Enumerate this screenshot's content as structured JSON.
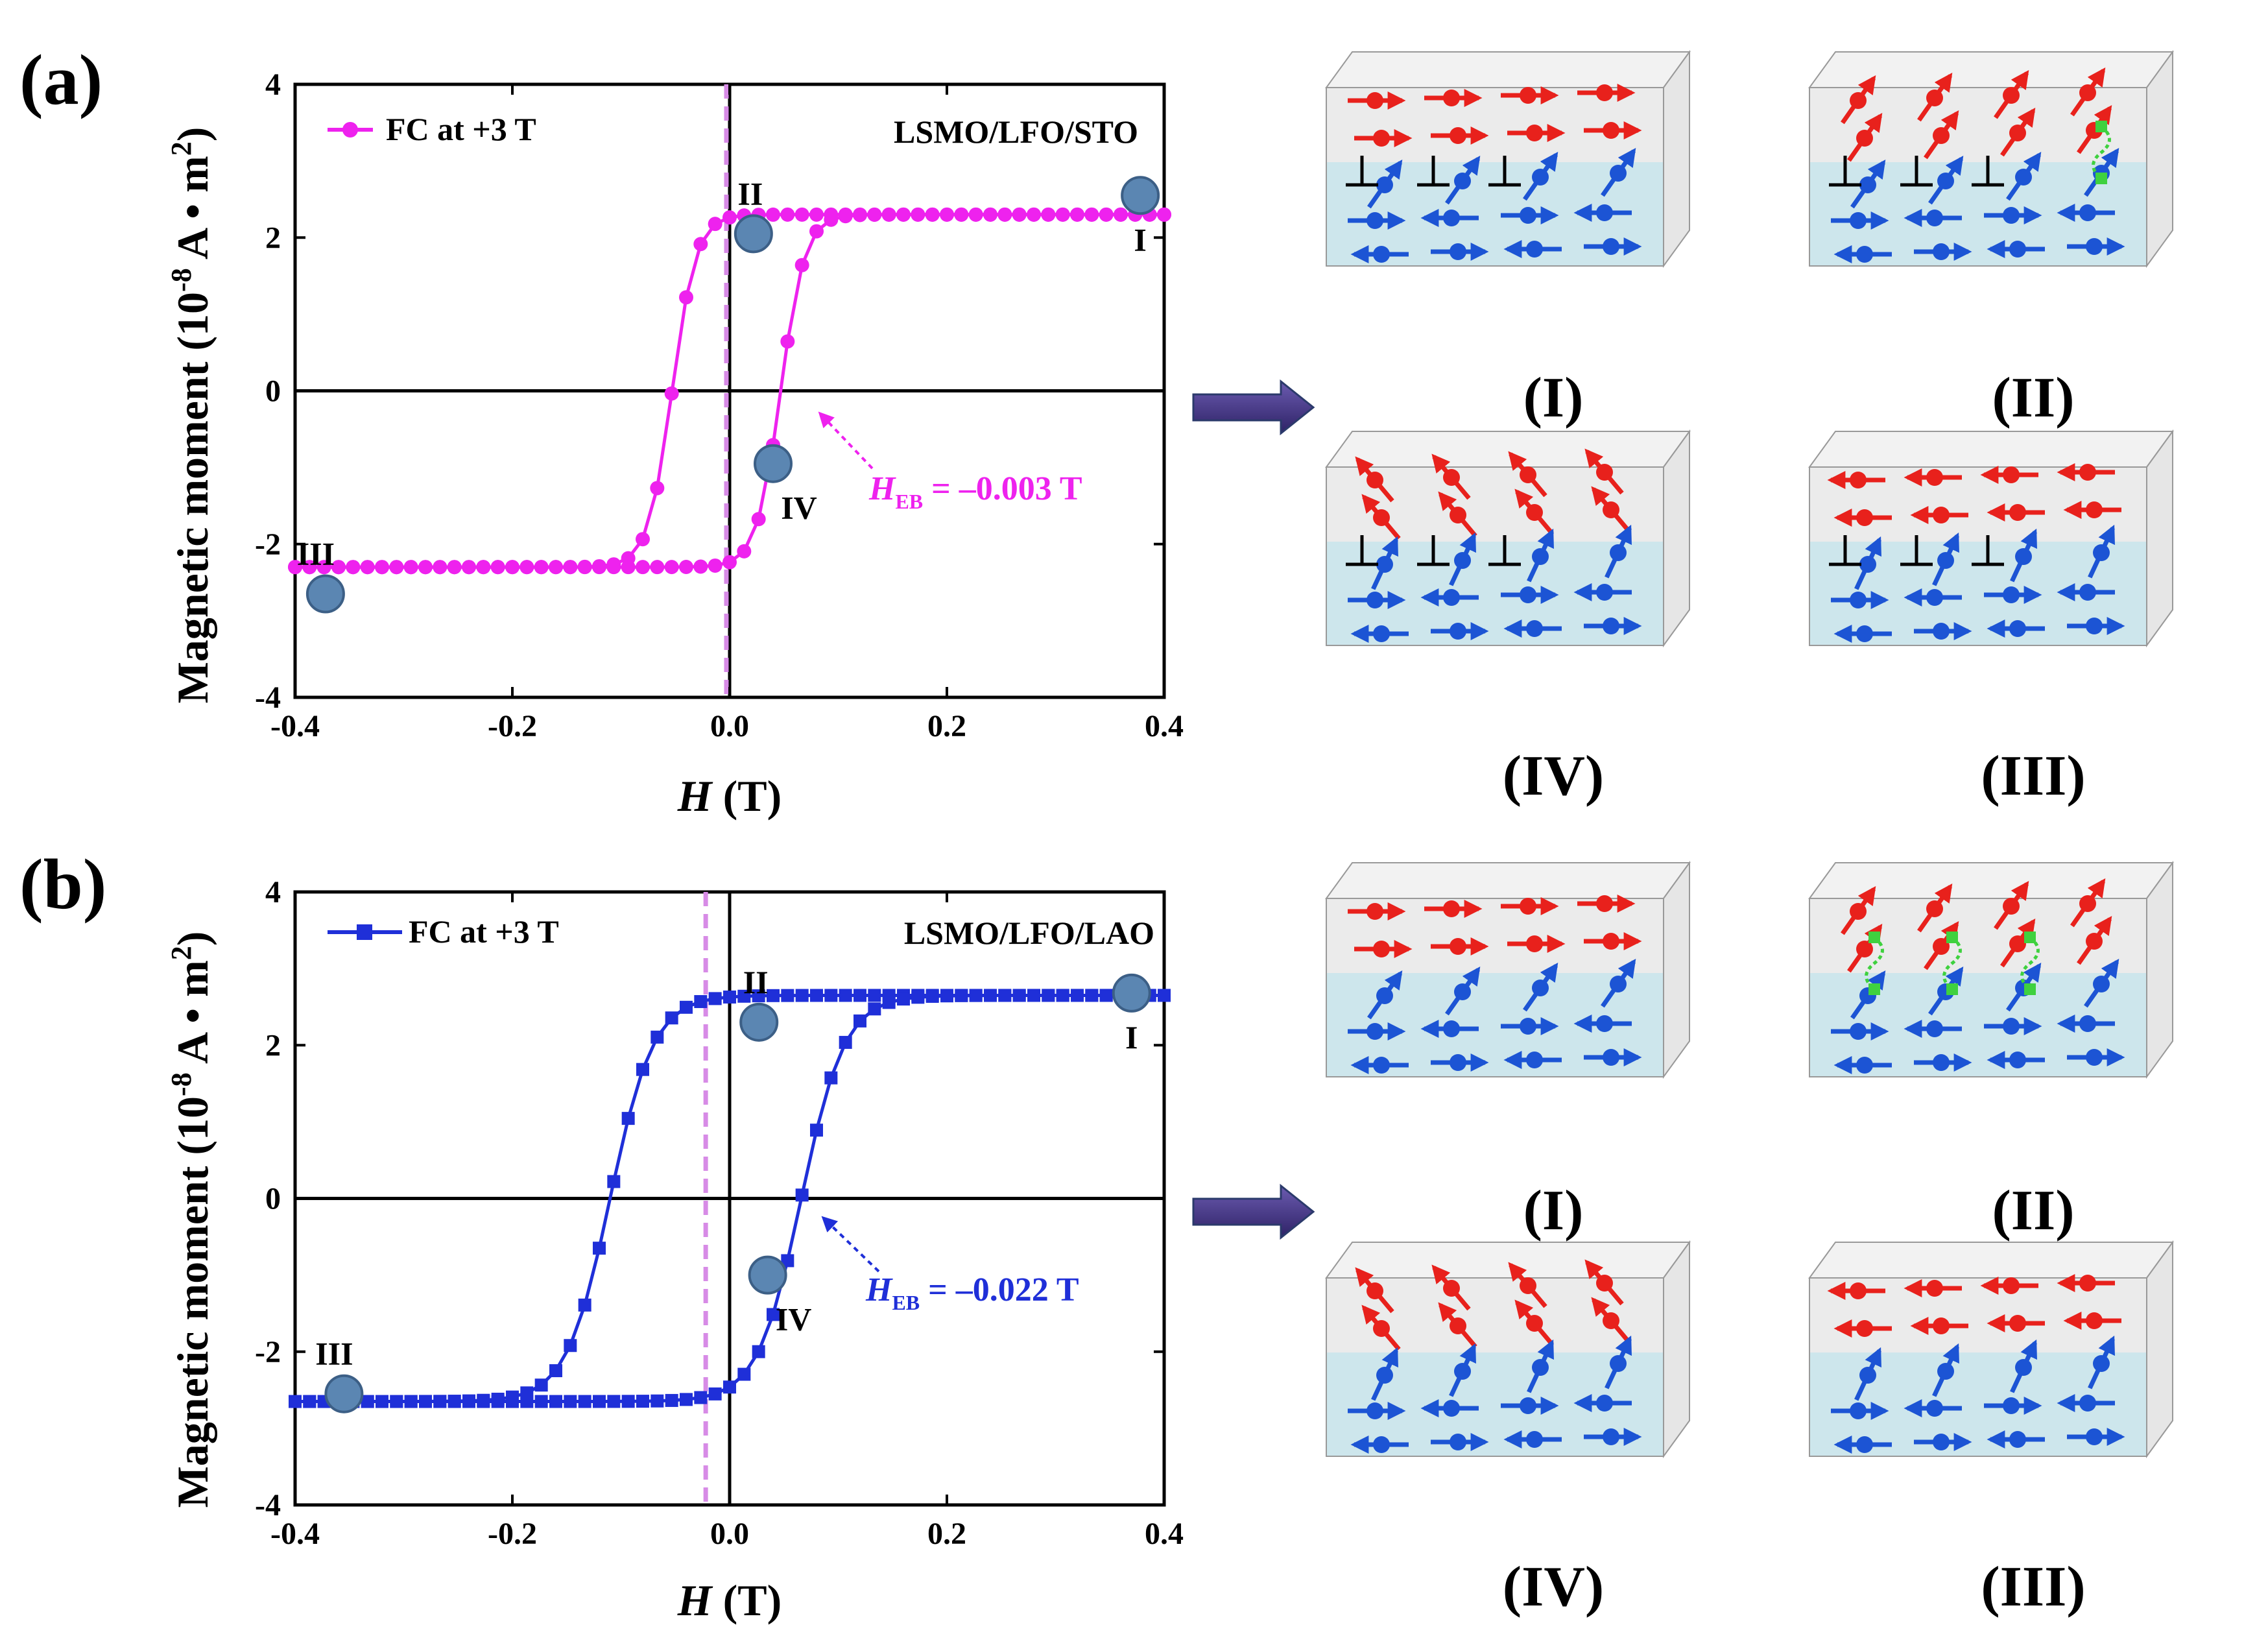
{
  "colors": {
    "panel_a": "#ee22ee",
    "panel_b": "#1f2fd8",
    "marker": "#5b86b2",
    "ebline": "#d78be6",
    "red_spin": "#e8211c",
    "blue_spin": "#1c54d4",
    "arrow": "#4a3b8c",
    "green": "#3fd13f"
  },
  "axis_common": {
    "ylabel_main": "Magnetic moment (10",
    "ylabel_exp": "-8",
    "ylabel_mid": " A • m",
    "ylabel_exp2": "2",
    "ylabel_end": ")",
    "xlabel_italic": "H",
    "xlabel_unit": " (T)",
    "xticks": [
      "-0.4",
      "-0.2",
      "0.0",
      "0.2",
      "0.4"
    ],
    "yticks": [
      "-4",
      "-2",
      "0",
      "2",
      "4"
    ]
  },
  "diagram_labels": [
    "(I)",
    "(II)",
    "(IV)",
    "(III)"
  ],
  "chart_data": [
    {
      "type": "line",
      "panel_label": "(a)",
      "title": "LSMO/LFO/STO",
      "legend": "FC at +3 T",
      "xlabel": "H (T)",
      "ylabel": "Magnetic moment (10^-8 A·m^2)",
      "xlim": [
        -0.4,
        0.4
      ],
      "ylim": [
        -4,
        4
      ],
      "hc": 0.05,
      "shift": -0.003,
      "ms": 2.3,
      "width": 0.022,
      "heb_line": -0.003,
      "annotation": {
        "italic": "H",
        "sub": "EB",
        "text": " = –0.003 T"
      },
      "points": [
        {
          "label": "I",
          "x": 0.378,
          "y": 2.55
        },
        {
          "label": "II",
          "x": 0.022,
          "y": 2.05
        },
        {
          "label": "III",
          "x": -0.372,
          "y": -2.65
        },
        {
          "label": "IV",
          "x": 0.04,
          "y": -0.95
        }
      ]
    },
    {
      "type": "line",
      "panel_label": "(b)",
      "title": "LSMO/LFO/LAO",
      "legend": "FC at  +3 T",
      "xlabel": "H (T)",
      "ylabel": "Magnetic moment (10^-8 A·m^2)",
      "xlim": [
        -0.4,
        0.4
      ],
      "ylim": [
        -4,
        4
      ],
      "hc": 0.088,
      "shift": -0.022,
      "ms": 2.65,
      "width": 0.04,
      "heb_line": -0.022,
      "annotation": {
        "italic": "H",
        "sub": "EB",
        "text": " = –0.022 T"
      },
      "points": [
        {
          "label": "I",
          "x": 0.37,
          "y": 2.68
        },
        {
          "label": "II",
          "x": 0.027,
          "y": 2.3
        },
        {
          "label": "III",
          "x": -0.355,
          "y": -2.55
        },
        {
          "label": "IV",
          "x": 0.035,
          "y": -1.0
        }
      ]
    }
  ]
}
